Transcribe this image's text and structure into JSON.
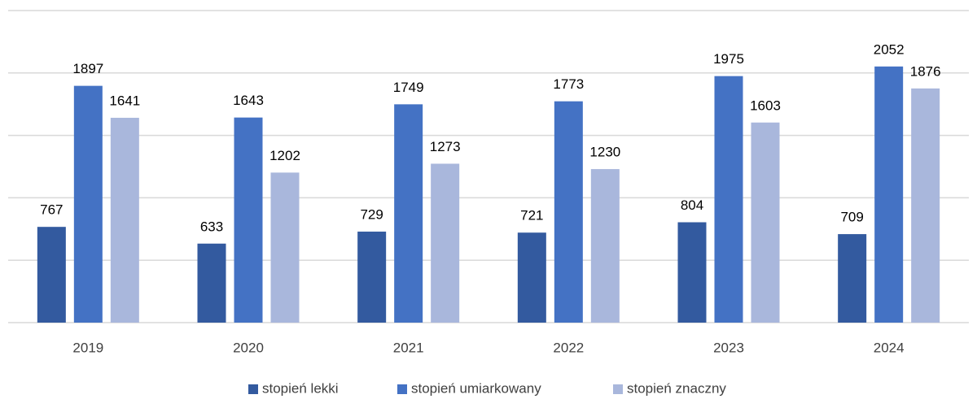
{
  "chart_data": {
    "type": "bar",
    "categories": [
      "2019",
      "2020",
      "2021",
      "2022",
      "2023",
      "2024"
    ],
    "series": [
      {
        "name": "stopień lekki",
        "color": "#335a9f",
        "values": [
          767,
          633,
          729,
          721,
          804,
          709
        ]
      },
      {
        "name": "stopień umiarkowany",
        "color": "#4472c4",
        "values": [
          1897,
          1643,
          1749,
          1773,
          1975,
          2052
        ]
      },
      {
        "name": "stopień znaczny",
        "color": "#a9b7dc",
        "values": [
          1641,
          1202,
          1273,
          1230,
          1603,
          1876
        ]
      }
    ],
    "ylim": [
      0,
      2500
    ],
    "yticks": [
      0,
      500,
      1000,
      1500,
      2000,
      2500
    ],
    "grid": true,
    "legend": "bottom"
  }
}
